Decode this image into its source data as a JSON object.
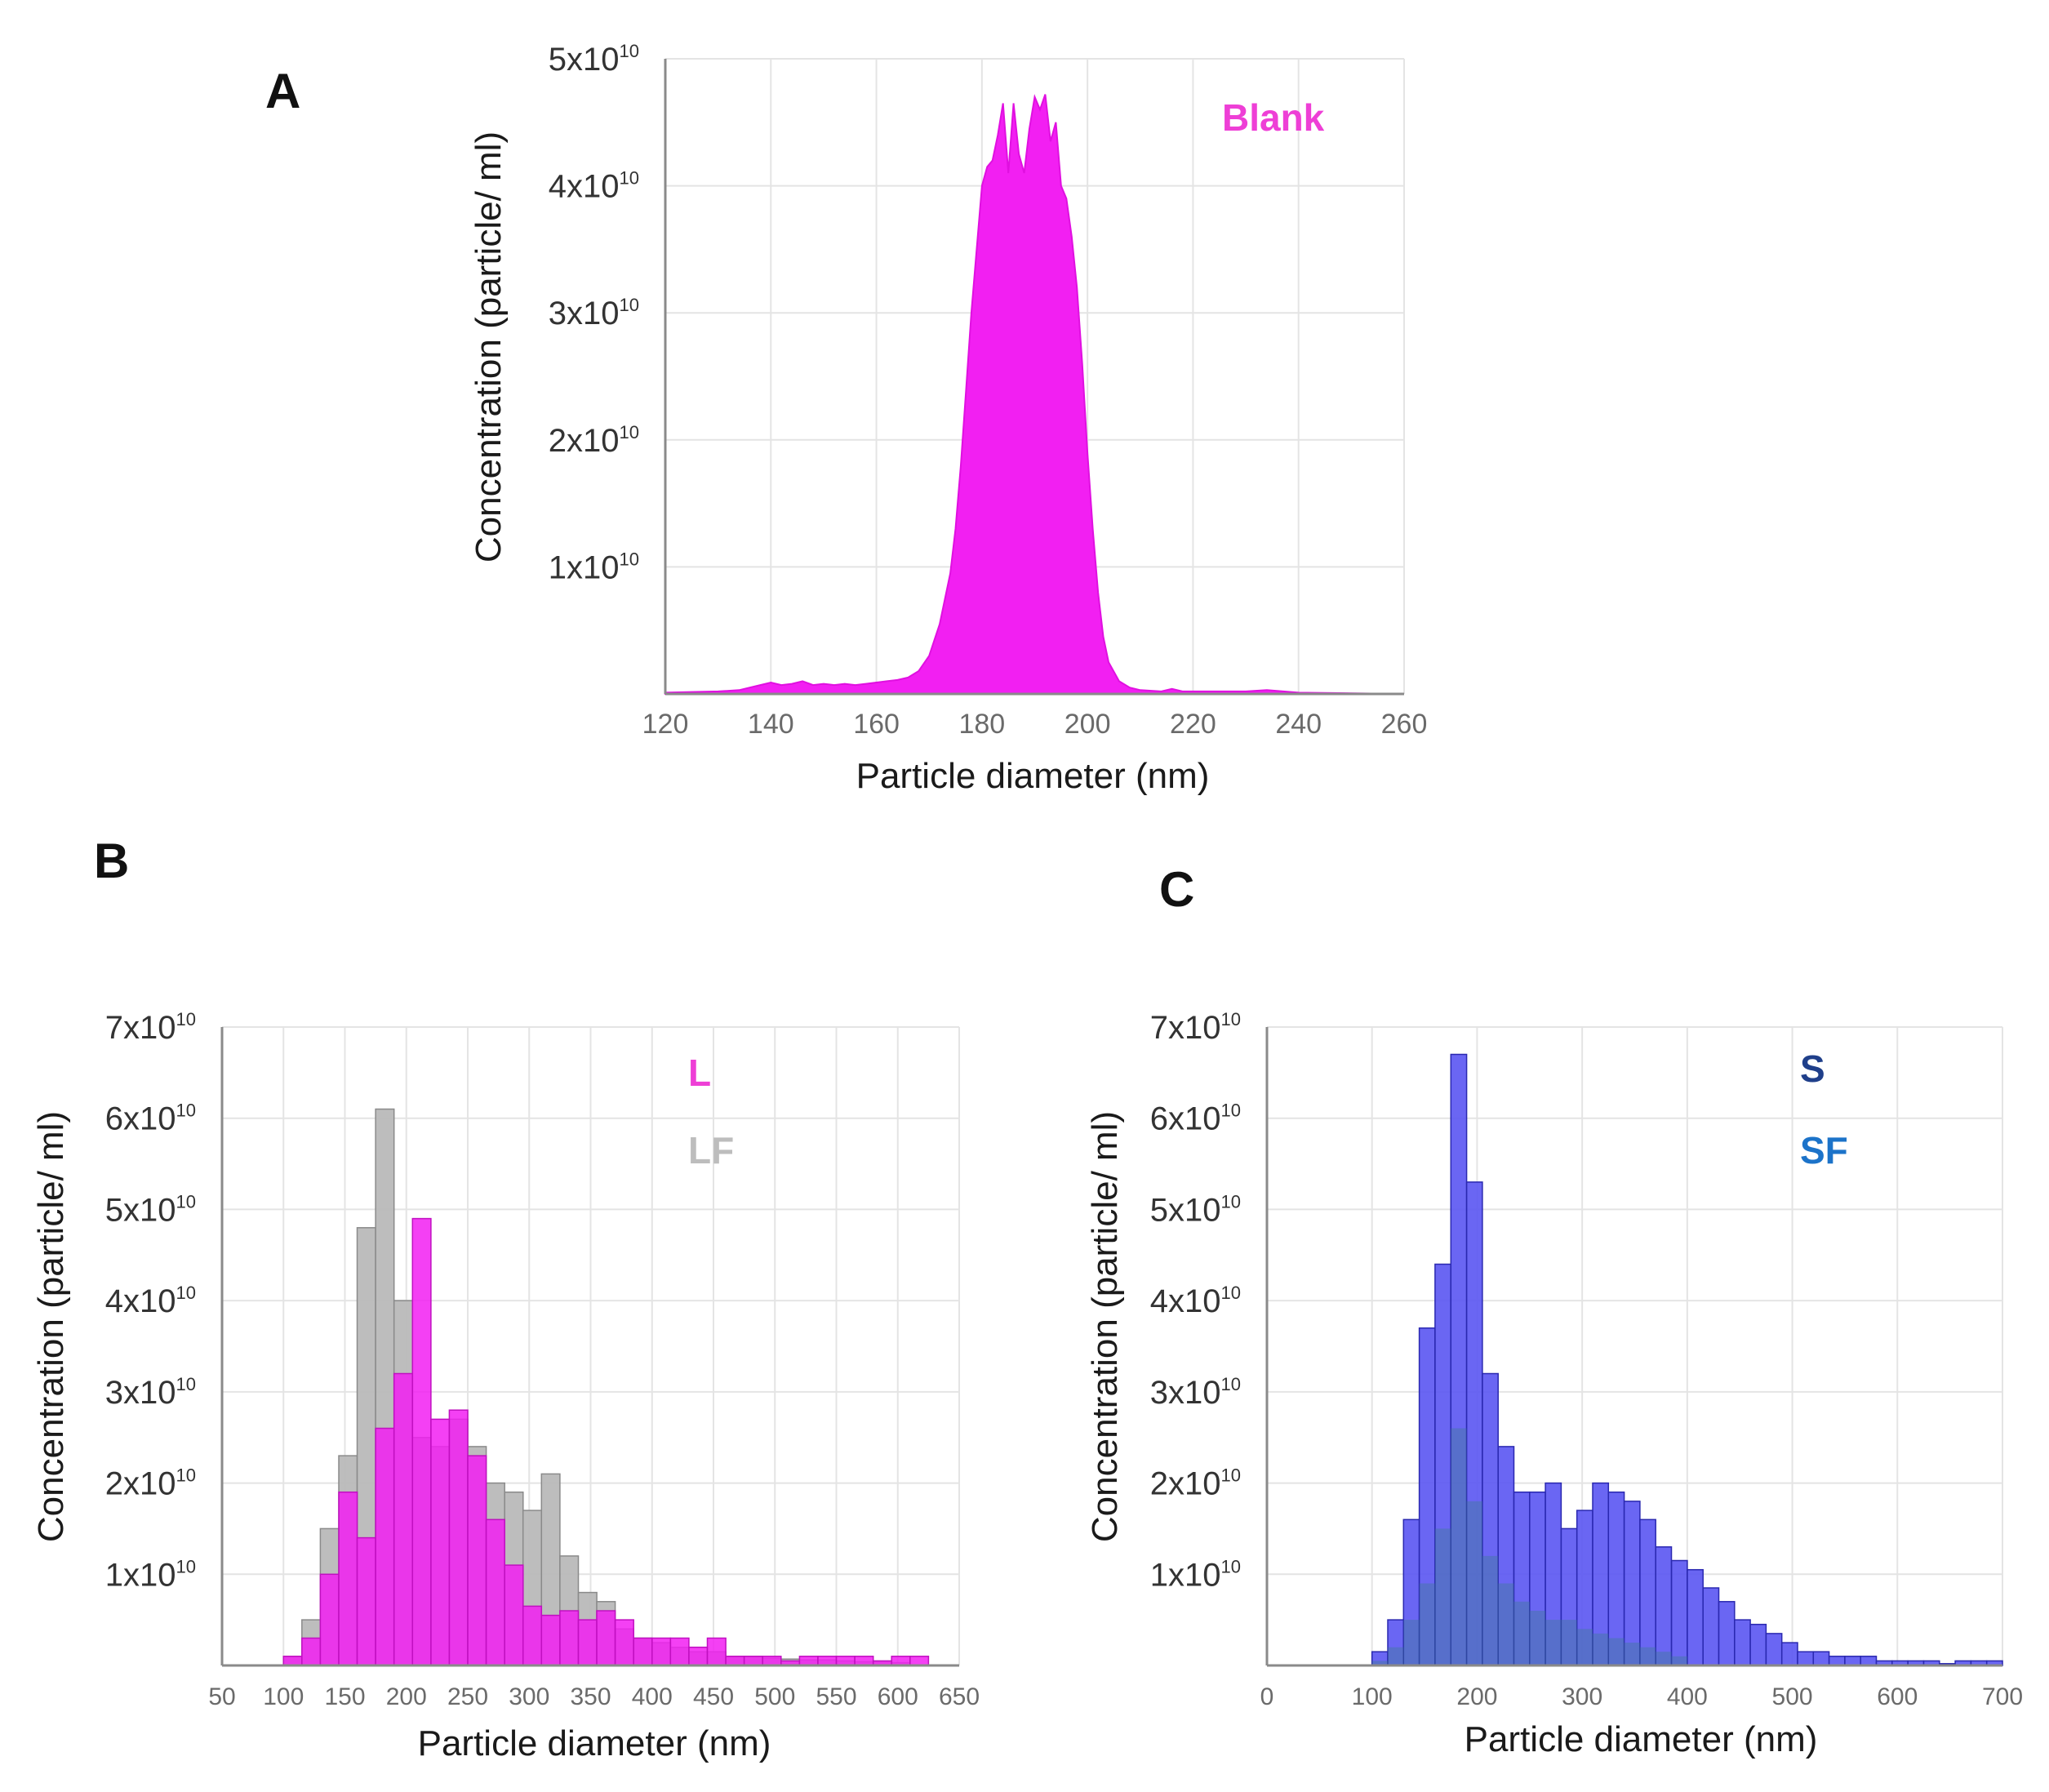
{
  "colors": {
    "magenta": "#f21ff2",
    "magenta_text": "#ee3fd6",
    "gray": "#b9b9b9",
    "blue": "#5a55f2",
    "blue_dark": "#2d4f8e",
    "teal": "#3a7d8c",
    "s_label": "#1f3f8a",
    "sf_label": "#1c73c9",
    "grid": "#e4e4e4"
  },
  "chart_data": [
    {
      "panel": "A",
      "type": "area",
      "ylabel": "Concentration (particle/ ml)",
      "xlabel": "Particle diameter (nm)",
      "xlim": [
        120,
        260
      ],
      "ylim": [
        0,
        5
      ],
      "x_ticks": [
        "120",
        "140",
        "160",
        "180",
        "200",
        "220",
        "240",
        "260"
      ],
      "y_ticks": [
        "1x10",
        "2x10",
        "3x10",
        "4x10",
        "5x10"
      ],
      "y_exponent": "10",
      "series": [
        {
          "name": "Blank",
          "x": [
            120,
            130,
            134,
            136,
            138,
            140,
            142,
            144,
            146,
            148,
            150,
            152,
            154,
            156,
            158,
            160,
            162,
            164,
            166,
            168,
            170,
            172,
            174,
            175,
            176,
            177,
            178,
            179,
            180,
            181,
            182,
            183,
            184,
            185,
            186,
            187,
            188,
            189,
            190,
            191,
            192,
            193,
            194,
            195,
            196,
            197,
            198,
            199,
            200,
            201,
            202,
            203,
            204,
            206,
            208,
            210,
            214,
            216,
            218,
            222,
            226,
            230,
            234,
            240,
            260
          ],
          "values": [
            0.01,
            0.02,
            0.03,
            0.05,
            0.07,
            0.09,
            0.07,
            0.08,
            0.1,
            0.07,
            0.08,
            0.07,
            0.08,
            0.07,
            0.08,
            0.09,
            0.1,
            0.11,
            0.13,
            0.18,
            0.3,
            0.55,
            0.95,
            1.3,
            1.8,
            2.4,
            3.0,
            3.5,
            4.0,
            4.15,
            4.2,
            4.4,
            4.65,
            4.1,
            4.65,
            4.25,
            4.1,
            4.45,
            4.7,
            4.6,
            4.72,
            4.35,
            4.5,
            4.0,
            3.9,
            3.6,
            3.2,
            2.6,
            1.9,
            1.3,
            0.8,
            0.45,
            0.25,
            0.1,
            0.05,
            0.03,
            0.02,
            0.04,
            0.02,
            0.02,
            0.02,
            0.02,
            0.03,
            0.01,
            0.0
          ]
        }
      ]
    },
    {
      "panel": "B",
      "type": "bar",
      "ylabel": "Concentration (particle/ ml)",
      "xlabel": "Particle diameter (nm)",
      "xlim": [
        50,
        650
      ],
      "ylim": [
        0,
        7
      ],
      "x_ticks": [
        "50",
        "100",
        "150",
        "200",
        "250",
        "300",
        "350",
        "400",
        "450",
        "500",
        "550",
        "600",
        "650"
      ],
      "y_ticks": [
        "1x10",
        "2x10",
        "3x10",
        "4x10",
        "5x10",
        "6x10",
        "7x10"
      ],
      "y_exponent": "10",
      "bin_start": 100,
      "bin_width": 15,
      "series": [
        {
          "name": "LF",
          "values": [
            0.1,
            0.5,
            1.5,
            2.3,
            4.8,
            6.1,
            4.0,
            2.5,
            2.4,
            2.7,
            2.4,
            2.0,
            1.9,
            1.7,
            2.1,
            1.2,
            0.8,
            0.7,
            0.4,
            0.3,
            0.25,
            0.2,
            0.15,
            0.15,
            0.1,
            0.1,
            0.08,
            0.07,
            0.06,
            0.06,
            0.05,
            0.04,
            0.04,
            0.03
          ]
        },
        {
          "name": "L",
          "values": [
            0.1,
            0.3,
            1.0,
            1.9,
            1.4,
            2.6,
            3.2,
            4.9,
            2.7,
            2.8,
            2.3,
            1.6,
            1.1,
            0.65,
            0.55,
            0.6,
            0.5,
            0.6,
            0.5,
            0.3,
            0.3,
            0.3,
            0.2,
            0.3,
            0.1,
            0.1,
            0.1,
            0.05,
            0.1,
            0.1,
            0.1,
            0.1,
            0.05,
            0.1,
            0.1
          ]
        }
      ]
    },
    {
      "panel": "C",
      "type": "bar",
      "ylabel": "Concentration (particle/ ml)",
      "xlabel": "Particle diameter (nm)",
      "xlim": [
        0,
        700
      ],
      "ylim": [
        0,
        7
      ],
      "x_ticks": [
        "0",
        "100",
        "200",
        "300",
        "400",
        "500",
        "600",
        "700"
      ],
      "y_ticks": [
        "1x10",
        "2x10",
        "3x10",
        "4x10",
        "5x10",
        "6x10",
        "7x10"
      ],
      "y_exponent": "10",
      "bin_start": 100,
      "bin_width": 15,
      "series": [
        {
          "name": "S",
          "values": [
            0.15,
            0.5,
            1.6,
            3.7,
            4.4,
            6.7,
            5.3,
            3.2,
            2.4,
            1.9,
            1.9,
            2.0,
            1.5,
            1.7,
            2.0,
            1.9,
            1.8,
            1.6,
            1.3,
            1.15,
            1.05,
            0.85,
            0.7,
            0.5,
            0.45,
            0.35,
            0.25,
            0.15,
            0.15,
            0.1,
            0.1,
            0.1,
            0.05,
            0.05,
            0.05,
            0.05,
            0.02,
            0.05,
            0.05,
            0.05
          ]
        },
        {
          "name": "SF",
          "values": [
            0.05,
            0.2,
            0.5,
            0.9,
            1.5,
            2.6,
            1.8,
            1.2,
            0.9,
            0.7,
            0.6,
            0.5,
            0.5,
            0.4,
            0.35,
            0.3,
            0.25,
            0.2,
            0.15,
            0.1
          ]
        }
      ]
    }
  ]
}
